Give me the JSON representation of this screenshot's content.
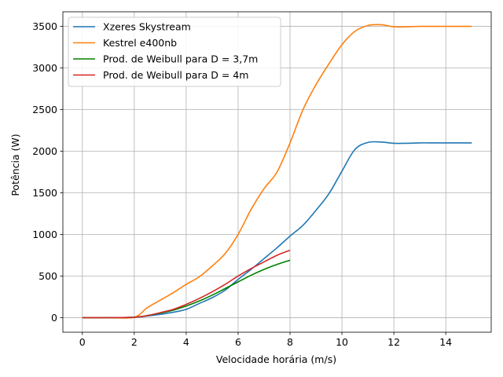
{
  "chart_data": {
    "type": "line",
    "xlabel": "Velocidade horária (m/s)",
    "ylabel": "Potência (W)",
    "xlim": [
      -0.75,
      15.75
    ],
    "ylim": [
      -175,
      3675
    ],
    "xticks": [
      0,
      2,
      4,
      6,
      8,
      10,
      12,
      14
    ],
    "yticks": [
      0,
      500,
      1000,
      1500,
      2000,
      2500,
      3000,
      3500
    ],
    "grid": true,
    "legend_position": "top-left",
    "series": [
      {
        "name": "Xzeres Skystream",
        "color": "#1f77b4",
        "x": [
          0,
          1,
          2,
          2.5,
          3,
          3.5,
          4,
          4.5,
          5,
          5.5,
          6,
          6.5,
          7,
          7.5,
          8,
          8.5,
          9,
          9.5,
          10,
          10.5,
          11,
          11.5,
          12,
          12.5,
          13,
          13.5,
          14,
          14.5,
          15
        ],
        "y": [
          0,
          0,
          5,
          20,
          40,
          65,
          100,
          170,
          240,
          330,
          460,
          580,
          710,
          840,
          980,
          1110,
          1290,
          1490,
          1760,
          2020,
          2105,
          2110,
          2095,
          2095,
          2100,
          2100,
          2100,
          2100,
          2100
        ]
      },
      {
        "name": "Kestrel e400nb",
        "color": "#ff7f0e",
        "x": [
          0,
          1,
          2,
          2.5,
          3,
          3.5,
          4,
          4.5,
          5,
          5.5,
          6,
          6.5,
          7,
          7.5,
          8,
          8.5,
          9,
          9.5,
          10,
          10.5,
          11,
          11.5,
          12,
          12.5,
          13,
          13.5,
          14,
          14.5,
          15
        ],
        "y": [
          0,
          0,
          5,
          120,
          210,
          300,
          400,
          490,
          620,
          770,
          1000,
          1300,
          1550,
          1750,
          2100,
          2500,
          2800,
          3050,
          3280,
          3440,
          3510,
          3520,
          3495,
          3495,
          3500,
          3500,
          3500,
          3500,
          3500
        ]
      },
      {
        "name": "Prod. de Weibull para D = 3,7m",
        "color": "#008000",
        "x": [
          0,
          1,
          2,
          2.5,
          3,
          3.5,
          4,
          4.5,
          5,
          5.5,
          6,
          6.5,
          7,
          7.5,
          8
        ],
        "y": [
          0,
          0,
          5,
          25,
          55,
          90,
          140,
          200,
          270,
          350,
          430,
          510,
          580,
          640,
          690
        ]
      },
      {
        "name": "Prod. de Weibull para D = 4m",
        "color": "#d62728",
        "x": [
          0,
          1,
          2,
          2.5,
          3,
          3.5,
          4,
          4.5,
          5,
          5.5,
          6,
          6.5,
          7,
          7.5,
          8
        ],
        "y": [
          0,
          0,
          5,
          25,
          60,
          100,
          160,
          230,
          310,
          400,
          500,
          590,
          670,
          750,
          810
        ]
      }
    ]
  }
}
